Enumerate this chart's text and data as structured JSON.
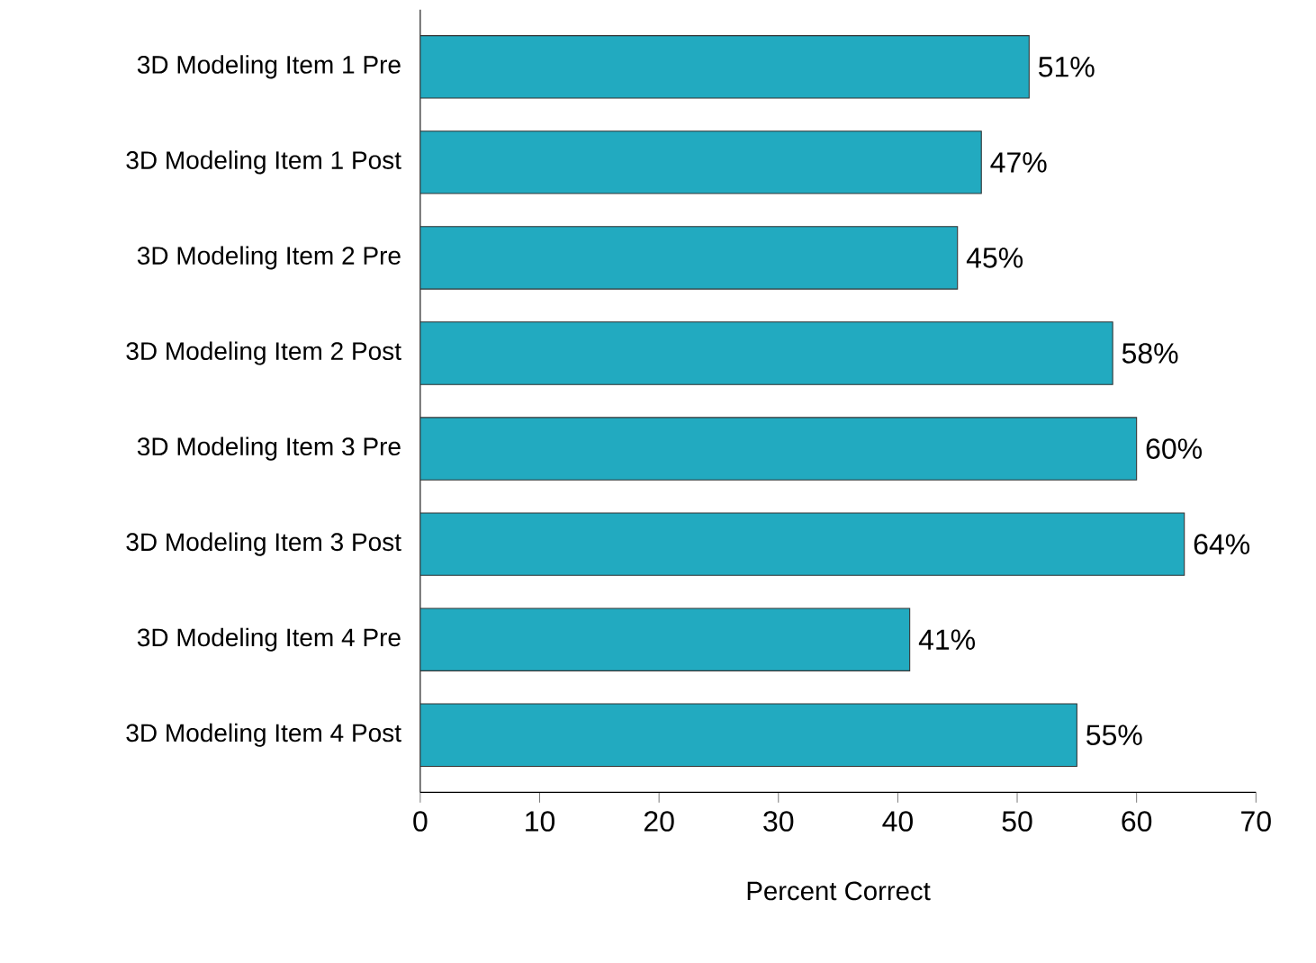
{
  "chart_data": {
    "type": "bar",
    "orientation": "horizontal",
    "xlabel": "Percent Correct",
    "categories": [
      "3D Modeling Item 1 Pre",
      "3D Modeling Item 1 Post",
      "3D Modeling Item 2 Pre",
      "3D Modeling Item 2 Post",
      "3D Modeling Item 3 Pre",
      "3D Modeling Item 3 Post",
      "3D Modeling Item 4 Pre",
      "3D Modeling Item 4 Post"
    ],
    "values": [
      51,
      47,
      45,
      58,
      60,
      64,
      41,
      55
    ],
    "value_labels": [
      "51%",
      "47%",
      "45%",
      "58%",
      "60%",
      "64%",
      "41%",
      "55%"
    ],
    "color": "#22aac0",
    "xlim": [
      0,
      70
    ],
    "xticks": [
      0,
      10,
      20,
      30,
      40,
      50,
      60,
      70
    ],
    "grid": false
  }
}
